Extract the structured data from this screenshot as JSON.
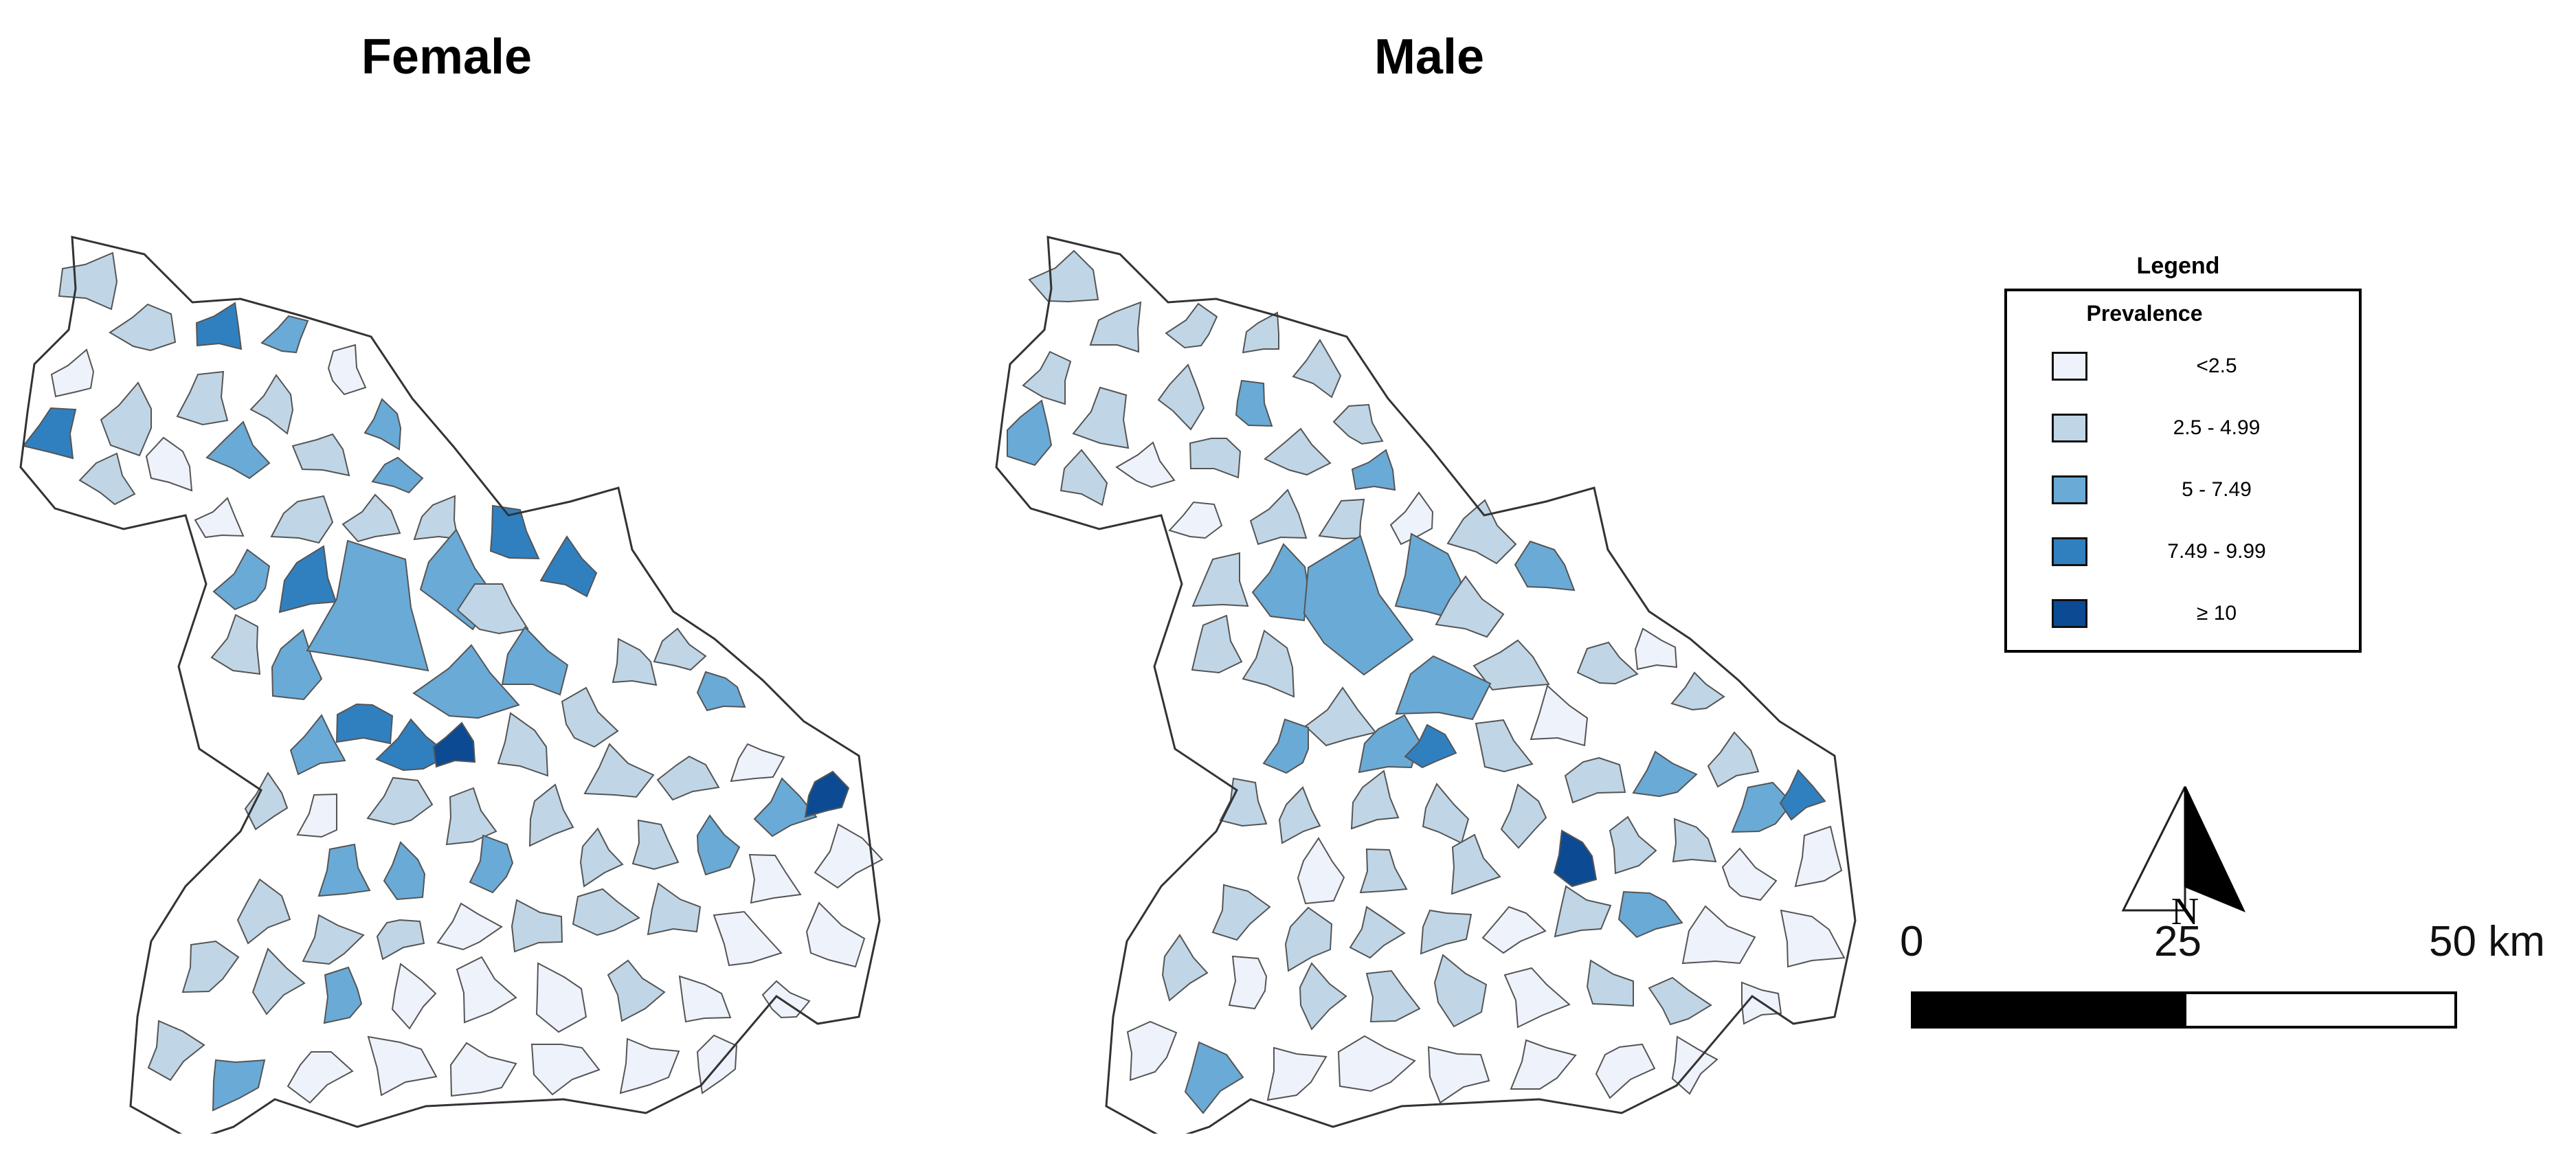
{
  "panels": [
    {
      "title": "Female"
    },
    {
      "title": "Male"
    }
  ],
  "legend": {
    "title": "Legend",
    "subtitle": "Prevalence",
    "classes": [
      {
        "label": "<2.5",
        "color": "#eef2fb"
      },
      {
        "label": "2.5 - 4.99",
        "color": "#c0d6e6"
      },
      {
        "label": "5 - 7.49",
        "color": "#6aaad6"
      },
      {
        "label": "7.49 - 9.99",
        "color": "#3080c0"
      },
      {
        "label": "≥ 10",
        "color": "#0c4a94"
      }
    ]
  },
  "north_arrow": {
    "label": "N"
  },
  "scale_bar": {
    "ticks": [
      "0",
      "25",
      "50 km"
    ]
  }
}
